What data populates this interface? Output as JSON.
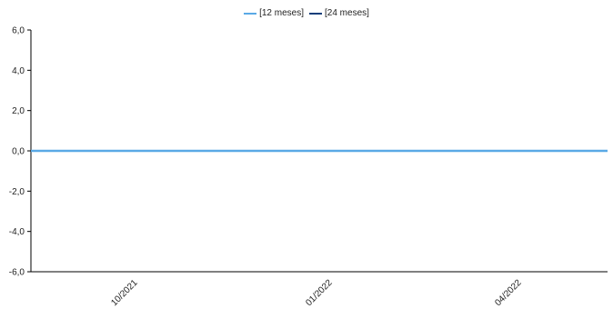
{
  "chart_data": {
    "type": "line",
    "x": [
      "10/2021",
      "01/2022",
      "04/2022"
    ],
    "x_categories": [
      "10/2021",
      "01/2022",
      "04/2022"
    ],
    "ylim": [
      -6.0,
      6.0
    ],
    "yticks": [
      "6,0",
      "4,0",
      "2,0",
      "0,0",
      "-2,0",
      "-4,0",
      "-6,0"
    ],
    "ytick_values": [
      6,
      4,
      2,
      0,
      -2,
      -4,
      -6
    ],
    "series": [
      {
        "name": "[12 meses]",
        "color": "#5aa9e6",
        "values": [
          0.0,
          0.0,
          0.0
        ]
      },
      {
        "name": "[24 meses]",
        "color": "#123e7a",
        "values": [
          0.0,
          0.0,
          0.0
        ]
      }
    ],
    "legend_position": "top-center",
    "grid": false
  }
}
